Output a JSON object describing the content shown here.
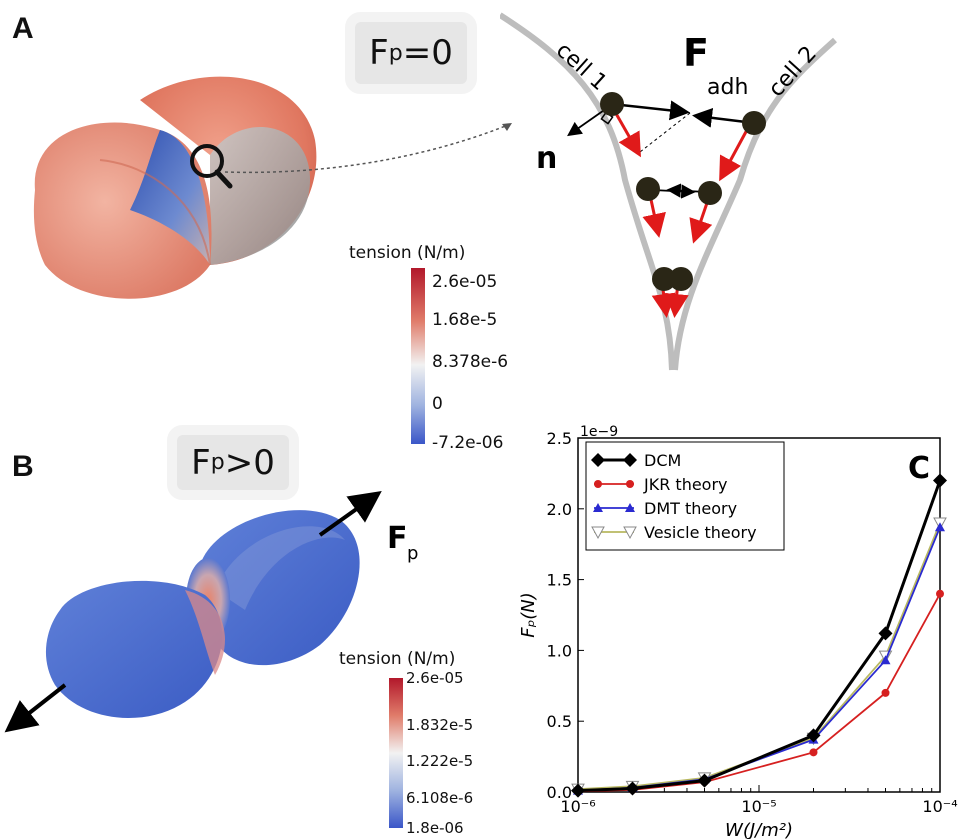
{
  "panels": {
    "a": {
      "letter": "A",
      "condition": {
        "main": "F",
        "sub": "p",
        "rest": "=0"
      },
      "colorbar": {
        "title": "tension (N/m)",
        "ticks": [
          "2.6e-05",
          "1.68e-5",
          "8.378e-6",
          "0",
          "-7.2e-06"
        ]
      },
      "schematic": {
        "cell1_label": "cell 1",
        "cell2_label": "cell 2",
        "force_label_main": "F",
        "force_label_sub": "adh",
        "normal_label": "n"
      }
    },
    "b": {
      "letter": "B",
      "condition": {
        "main": "F",
        "sub": "p",
        "rest": ">0"
      },
      "force_label_main": "F",
      "force_label_sub": "p",
      "colorbar": {
        "title": "tension (N/m)",
        "ticks": [
          "2.6e-05",
          "1.832e-5",
          "1.222e-5",
          "6.108e-6",
          "1.8e-06"
        ]
      }
    },
    "c": {
      "letter": "C"
    }
  },
  "colors": {
    "dcm": "#000000",
    "jkr": "#d62020",
    "dmt": "#2a2ad0",
    "vesicle": "#b8b860",
    "tension_high": "#b2182b",
    "tension_mid": "#f2f2f2",
    "tension_low": "#3a56c8",
    "cell_shell_a": "#e8836a",
    "cell_shell_b": "#4a6fd4",
    "membrane_line": "#bdbdbd",
    "force_arrow": "#e01a1a"
  },
  "chart_data": {
    "type": "line",
    "xscale": "log",
    "x": [
      1e-06,
      2e-06,
      5e-06,
      2e-05,
      5e-05,
      0.0001
    ],
    "xlim": [
      1e-06,
      0.0001
    ],
    "ylim": [
      0,
      2.5
    ],
    "y_multiplier": "1e−9",
    "xlabel": "W(J/m²)",
    "ylabel": "Fₚ(N)",
    "x_tick_labels": [
      "10⁻⁶",
      "10⁻⁵",
      "10⁻⁴"
    ],
    "y_tick_labels": [
      "0.0",
      "0.5",
      "1.0",
      "1.5",
      "2.0",
      "2.5"
    ],
    "grid": false,
    "legend_position": "top-left",
    "series": [
      {
        "name": "DCM",
        "marker": "diamond",
        "values": [
          0.01,
          0.025,
          0.08,
          0.4,
          1.12,
          2.2
        ]
      },
      {
        "name": "JKR theory",
        "marker": "circle",
        "values": [
          0.005,
          0.015,
          0.07,
          0.28,
          0.7,
          1.4
        ]
      },
      {
        "name": "DMT theory",
        "marker": "triangle-up",
        "values": [
          0.01,
          0.03,
          0.09,
          0.37,
          0.93,
          1.87
        ]
      },
      {
        "name": "Vesicle theory",
        "marker": "triangle-down",
        "values": [
          0.02,
          0.04,
          0.1,
          0.38,
          0.96,
          1.9
        ]
      }
    ]
  }
}
